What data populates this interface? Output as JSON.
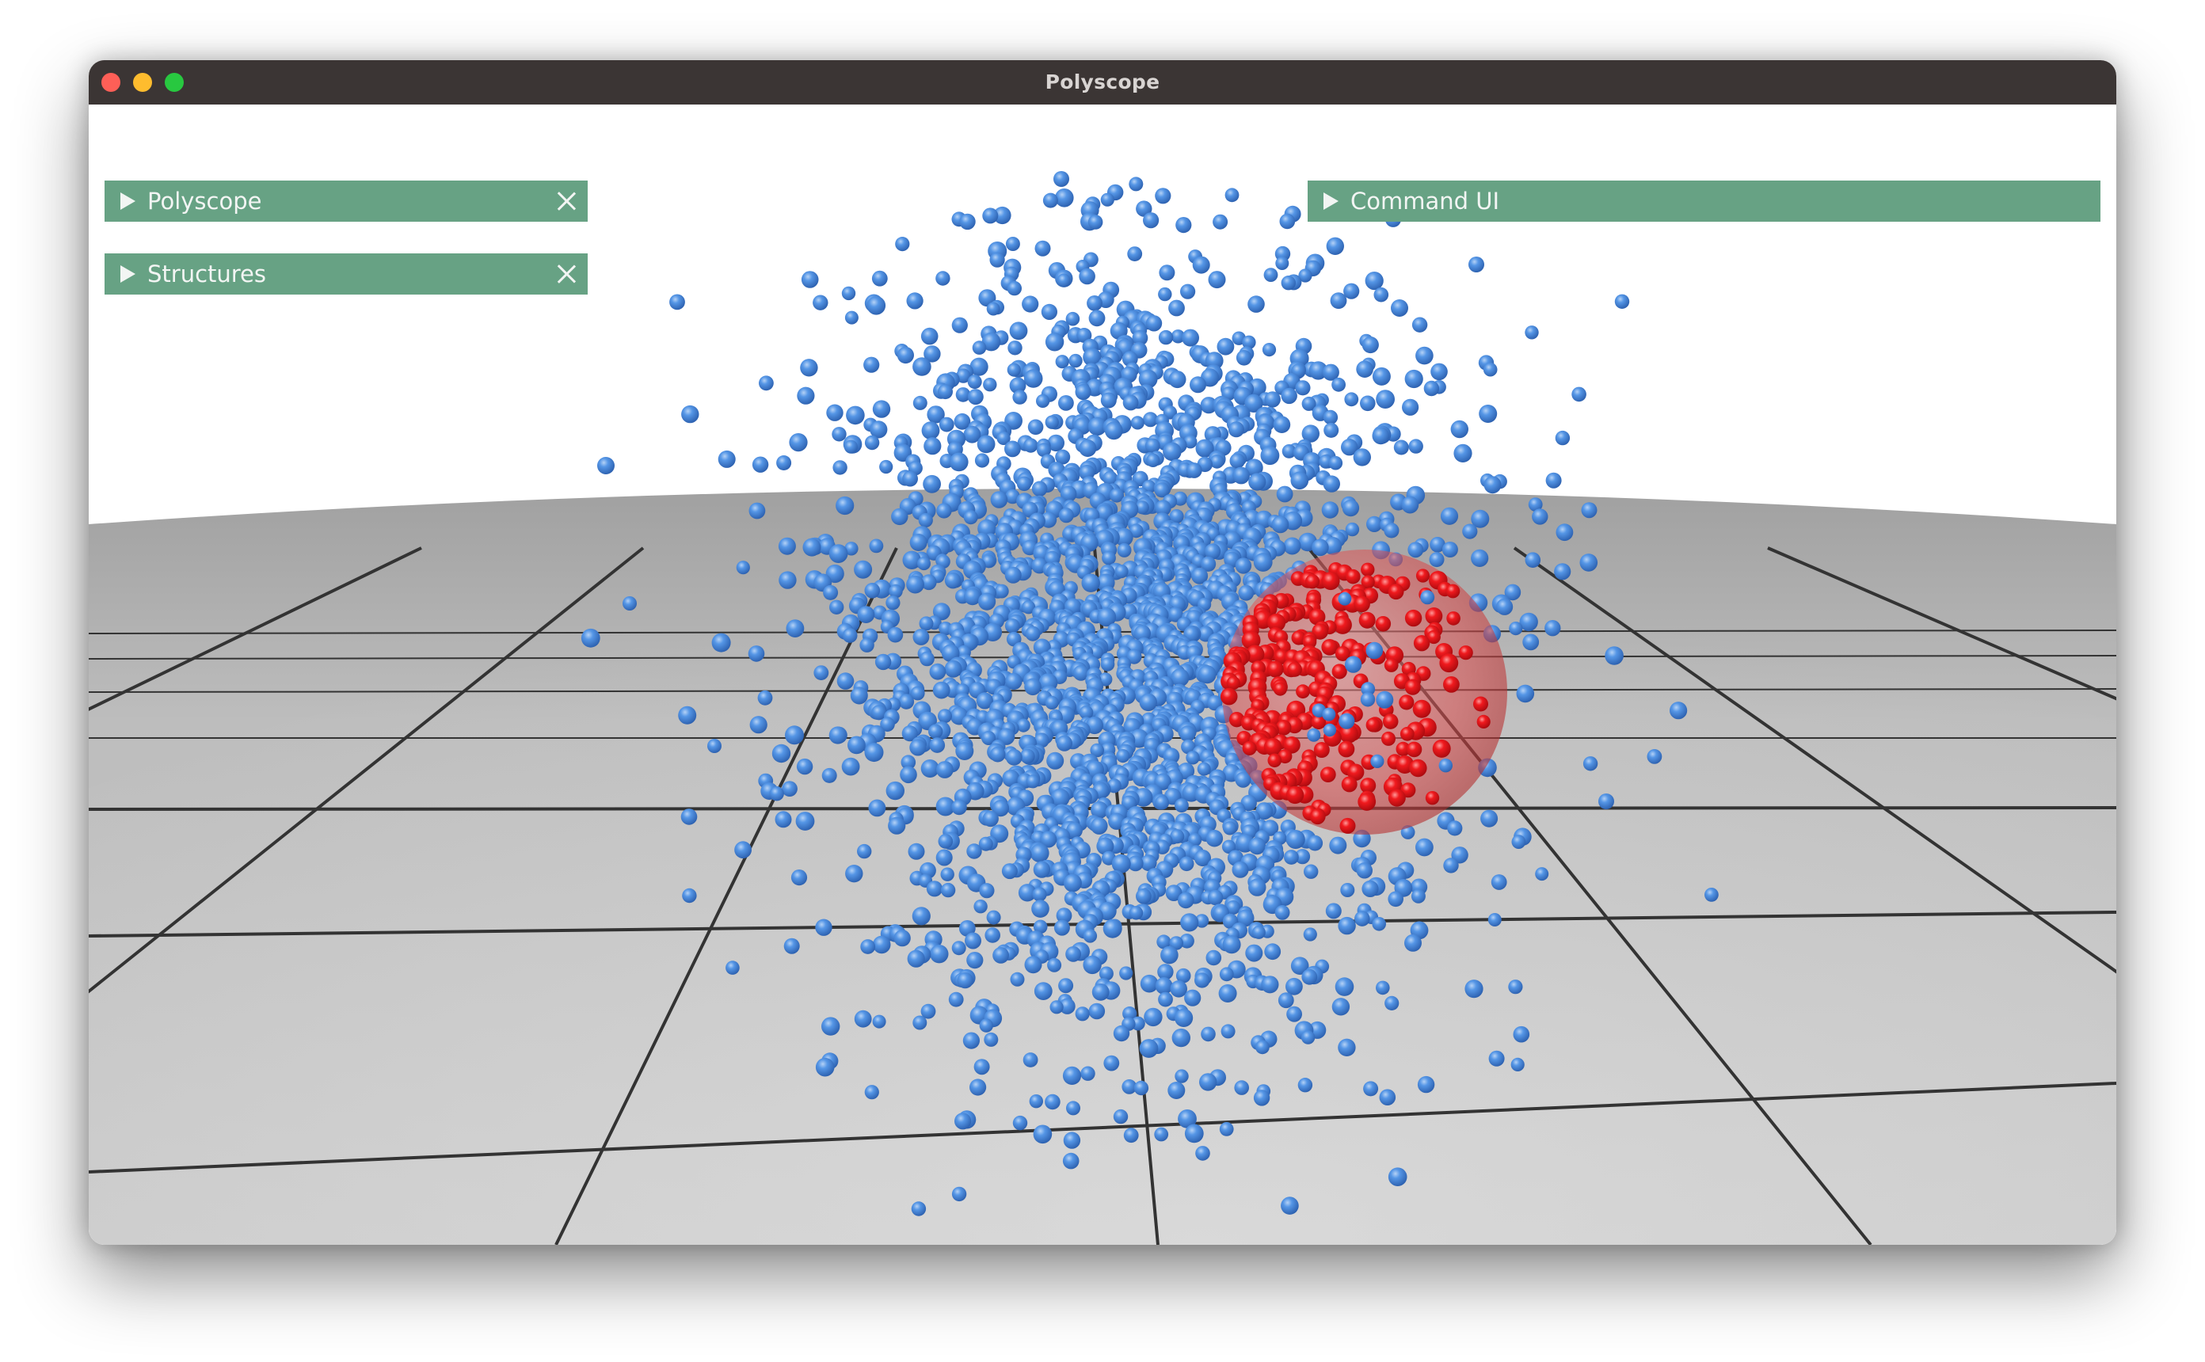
{
  "window": {
    "title": "Polyscope"
  },
  "panels": {
    "polyscope": {
      "label": "Polyscope"
    },
    "structures": {
      "label": "Structures"
    },
    "command_ui": {
      "label": "Command UI"
    }
  },
  "colors": {
    "titlebar": "#3b3534",
    "panel_header": "#67a284",
    "points": "#3f7fd6",
    "highlight_points": "#e8141a",
    "highlight_sphere": "#e04a4a",
    "ground": "#bcbcbc",
    "grid_lines": "#2f2f2f"
  },
  "icons": {
    "panel_toggle": "triangle-right-icon",
    "panel_close": "close-x-icon"
  }
}
